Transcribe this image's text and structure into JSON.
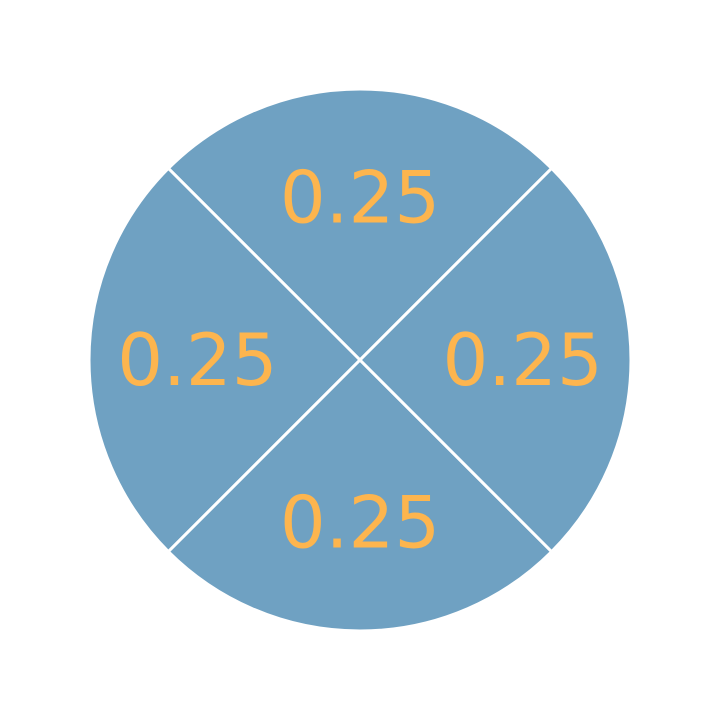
{
  "chart_data": {
    "type": "pie",
    "title": "",
    "categories": [
      "",
      "",
      "",
      ""
    ],
    "values": [
      0.25,
      0.25,
      0.25,
      0.25
    ],
    "labels": [
      "0.25",
      "0.25",
      "0.25",
      "0.25"
    ],
    "legend": "none",
    "grid": false
  },
  "colors": {
    "slice_fill": "#6fa1c2",
    "slice_edge": "#ffffff",
    "label_text": "#fdb54e",
    "background": "#ffffff"
  }
}
